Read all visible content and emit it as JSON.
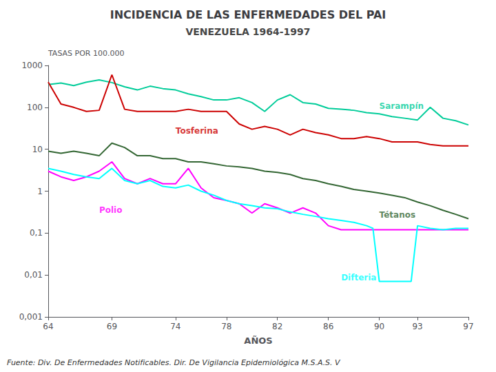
{
  "chart_data": {
    "type": "line",
    "title": "INCIDENCIA DE LAS ENFERMEDADES DEL PAI",
    "subtitle": "VENEZUELA 1964-1997",
    "xlabel": "AÑOS",
    "ylabel": "TASAS POR 100.000",
    "footer": "Fuente: Div. De Enfermedades Notificables. Dir. De Vigilancia Epidemiológica M.S.A.S. V",
    "log": "y",
    "grid": false,
    "xlim": [
      64,
      97
    ],
    "xticks": [
      64,
      69,
      74,
      78,
      82,
      86,
      90,
      93,
      97
    ],
    "ylim": [
      0.001,
      1000
    ],
    "yticks": [
      {
        "value": 0.001,
        "label": "0,001"
      },
      {
        "value": 0.01,
        "label": "0,01"
      },
      {
        "value": 0.1,
        "label": "0,1"
      },
      1,
      10,
      100,
      1000
    ],
    "series": [
      {
        "color": "#00CC99",
        "x": [
          64,
          65,
          66,
          67,
          68,
          69,
          70,
          71,
          72,
          73,
          74,
          75,
          76,
          77,
          78,
          79,
          80,
          81,
          82,
          83,
          84,
          85,
          86,
          87,
          88,
          89,
          90,
          91,
          92,
          93,
          94,
          95,
          96,
          97
        ],
        "values": [
          350,
          380,
          330,
          400,
          450,
          390,
          310,
          260,
          320,
          280,
          260,
          210,
          180,
          150,
          150,
          170,
          130,
          80,
          150,
          200,
          130,
          120,
          95,
          90,
          85,
          75,
          70,
          60,
          55,
          50,
          100,
          55,
          48,
          38
        ]
      },
      {
        "color": "#CC0000",
        "x": [
          64,
          65,
          66,
          67,
          68,
          69,
          70,
          71,
          72,
          73,
          74,
          75,
          76,
          77,
          78,
          79,
          80,
          81,
          82,
          83,
          84,
          85,
          86,
          87,
          88,
          89,
          90,
          91,
          92,
          93,
          94,
          95,
          96,
          97
        ],
        "values": [
          400,
          120,
          100,
          80,
          85,
          600,
          90,
          80,
          80,
          80,
          80,
          90,
          80,
          80,
          80,
          40,
          30,
          35,
          30,
          22,
          30,
          25,
          22,
          18,
          18,
          20,
          18,
          15,
          15,
          15,
          13,
          12,
          12,
          12
        ]
      },
      {
        "color": "#336633",
        "x": [
          64,
          65,
          66,
          67,
          68,
          69,
          70,
          71,
          72,
          73,
          74,
          75,
          76,
          77,
          78,
          79,
          80,
          81,
          82,
          83,
          84,
          85,
          86,
          87,
          88,
          89,
          90,
          91,
          92,
          93,
          94,
          95,
          96,
          97
        ],
        "values": [
          9,
          8,
          9,
          8,
          7,
          14,
          11,
          7,
          7,
          6,
          6,
          5,
          5,
          4.5,
          4,
          3.8,
          3.5,
          3,
          2.8,
          2.5,
          2,
          1.8,
          1.5,
          1.3,
          1.1,
          1.0,
          0.9,
          0.8,
          0.7,
          0.55,
          0.45,
          0.35,
          0.28,
          0.22
        ]
      },
      {
        "color": "#FF00FF",
        "x": [
          64,
          65,
          66,
          67,
          68,
          69,
          70,
          71,
          72,
          73,
          74,
          75,
          76,
          77,
          78,
          79,
          80,
          81,
          82,
          83,
          84,
          85,
          86,
          87,
          88,
          89,
          90,
          91,
          92,
          93,
          94,
          95,
          96,
          97
        ],
        "values": [
          3,
          2.2,
          1.8,
          2.2,
          3,
          5,
          2,
          1.5,
          2,
          1.5,
          1.5,
          3.5,
          1.2,
          0.7,
          0.6,
          0.5,
          0.3,
          0.5,
          0.4,
          0.3,
          0.4,
          0.3,
          0.15,
          0.12,
          0.12,
          0.12,
          0.12,
          0.12,
          0.12,
          0.12,
          0.12,
          0.12,
          0.12,
          0.12
        ]
      },
      {
        "color": "#00FFFF",
        "x": [
          64,
          65,
          66,
          67,
          68,
          69,
          70,
          71,
          72,
          73,
          74,
          75,
          76,
          77,
          78,
          79,
          80,
          81,
          82,
          83,
          84,
          85,
          86,
          87,
          88,
          89,
          89.5,
          90,
          91,
          92,
          92.5,
          93,
          94,
          95,
          96,
          97
        ],
        "values": [
          3.5,
          3.0,
          2.5,
          2.2,
          2.0,
          3.5,
          1.8,
          1.5,
          1.8,
          1.3,
          1.2,
          1.4,
          1.0,
          0.8,
          0.6,
          0.5,
          0.45,
          0.4,
          0.38,
          0.32,
          0.28,
          0.25,
          0.22,
          0.2,
          0.18,
          0.15,
          0.13,
          0.007,
          0.007,
          0.007,
          0.007,
          0.15,
          0.13,
          0.12,
          0.13,
          0.13
        ]
      }
    ],
    "annotations": [
      {
        "text": "Sarampín",
        "x": 90,
        "y": 85,
        "color": "#00CC99"
      },
      {
        "text": "Tosferina",
        "x": 74,
        "y": 22,
        "color": "#CC0000"
      },
      {
        "text": "Tétanos",
        "x": 90,
        "y": 0.22,
        "color": "#336633"
      },
      {
        "text": "Polio",
        "x": 68,
        "y": 0.28,
        "color": "#FF00FF"
      },
      {
        "text": "Difteria",
        "x": 87,
        "y": 0.007,
        "color": "#00FFFF"
      }
    ]
  }
}
